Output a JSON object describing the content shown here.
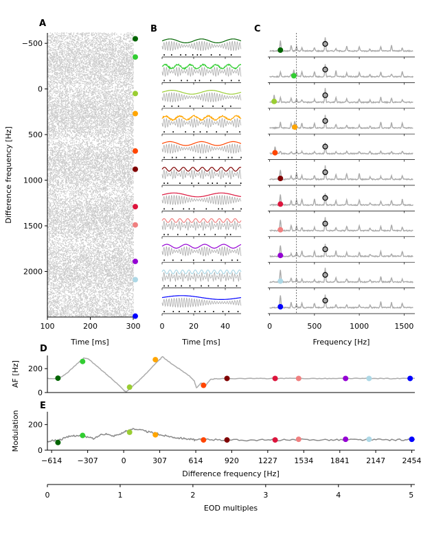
{
  "panel_labels": {
    "a": "A",
    "b": "B",
    "c": "C",
    "d": "D",
    "e": "E"
  },
  "chart_data": [
    {
      "id": "A",
      "type": "scatter",
      "xlabel": "Time [ms]",
      "ylabel": "Difference frequency [Hz]",
      "xlim": [
        100,
        300
      ],
      "ylim": [
        2500,
        -614
      ],
      "x_ticks": [
        100,
        200,
        300
      ],
      "y_ticks": [
        -500,
        0,
        500,
        1000,
        1500,
        2000
      ],
      "y_tick_labels": [
        "−500",
        "0",
        "500",
        "1000",
        "1500",
        "2000"
      ],
      "description_of_marks": "gray spike raster, one row per difference frequency",
      "marker_points": [
        {
          "y": -550,
          "color": "#006400"
        },
        {
          "y": -350,
          "color": "#32cd32"
        },
        {
          "y": 50,
          "color": "#9acd32"
        },
        {
          "y": 270,
          "color": "#ffa500"
        },
        {
          "y": 680,
          "color": "#ff4500"
        },
        {
          "y": 880,
          "color": "#800000"
        },
        {
          "y": 1290,
          "color": "#dc143c"
        },
        {
          "y": 1490,
          "color": "#f08080"
        },
        {
          "y": 1890,
          "color": "#9400d3"
        },
        {
          "y": 2090,
          "color": "#add8e6"
        },
        {
          "y": 2490,
          "color": "#0000ff"
        }
      ]
    },
    {
      "id": "B",
      "type": "line",
      "xlabel": "Time [ms]",
      "xlim": [
        0,
        50
      ],
      "x_ticks": [
        0,
        20,
        40
      ],
      "series_colors": [
        "#006400",
        "#32cd32",
        "#9acd32",
        "#ffa500",
        "#ff4500",
        "#800000",
        "#dc143c",
        "#f08080",
        "#9400d3",
        "#add8e6",
        "#0000ff"
      ],
      "am_periods_ms": [
        20,
        8,
        25,
        9,
        20,
        6,
        30,
        5,
        12,
        4,
        50
      ]
    },
    {
      "id": "C",
      "type": "line",
      "xlabel": "Frequency [Hz]",
      "xlim": [
        -20,
        1620
      ],
      "x_ticks": [
        0,
        500,
        1000,
        1500
      ],
      "reference_line_hz": 300,
      "eod_marker_hz": 620,
      "marker_freqs_hz": [
        120,
        270,
        50,
        280,
        60,
        120,
        120,
        120,
        120,
        120,
        120
      ],
      "series_colors": [
        "#006400",
        "#32cd32",
        "#9acd32",
        "#ffa500",
        "#ff4500",
        "#800000",
        "#dc143c",
        "#f08080",
        "#9400d3",
        "#add8e6",
        "#0000ff"
      ]
    },
    {
      "id": "D",
      "type": "line",
      "ylabel": "AF [Hz]",
      "xlim": [
        -650,
        2480
      ],
      "ylim": [
        0,
        310
      ],
      "y_ticks": [
        0,
        200
      ],
      "curve": [
        [
          -650,
          120
        ],
        [
          -560,
          115
        ],
        [
          -500,
          150
        ],
        [
          -440,
          200
        ],
        [
          -380,
          255
        ],
        [
          -340,
          290
        ],
        [
          -300,
          280
        ],
        [
          -240,
          230
        ],
        [
          -180,
          180
        ],
        [
          -120,
          130
        ],
        [
          -60,
          80
        ],
        [
          0,
          20
        ],
        [
          20,
          5
        ],
        [
          60,
          40
        ],
        [
          120,
          90
        ],
        [
          180,
          150
        ],
        [
          240,
          210
        ],
        [
          300,
          270
        ],
        [
          330,
          300
        ],
        [
          380,
          260
        ],
        [
          440,
          220
        ],
        [
          500,
          180
        ],
        [
          560,
          140
        ],
        [
          600,
          100
        ],
        [
          620,
          40
        ],
        [
          660,
          80
        ],
        [
          700,
          60
        ],
        [
          740,
          110
        ],
        [
          780,
          115
        ],
        [
          840,
          118
        ],
        [
          900,
          117
        ],
        [
          1000,
          118
        ],
        [
          1100,
          117
        ],
        [
          1200,
          118
        ],
        [
          1300,
          117
        ],
        [
          1400,
          118
        ],
        [
          1500,
          117
        ],
        [
          1600,
          118
        ],
        [
          1700,
          117
        ],
        [
          1800,
          117
        ],
        [
          1900,
          118
        ],
        [
          2000,
          118
        ],
        [
          2100,
          117
        ],
        [
          2200,
          118
        ],
        [
          2300,
          117
        ],
        [
          2400,
          118
        ],
        [
          2480,
          118
        ]
      ],
      "markers": [
        {
          "x": -560,
          "y": 120,
          "color": "#006400"
        },
        {
          "x": -350,
          "y": 260,
          "color": "#32cd32"
        },
        {
          "x": 50,
          "y": 45,
          "color": "#9acd32"
        },
        {
          "x": 270,
          "y": 275,
          "color": "#ffa500"
        },
        {
          "x": 680,
          "y": 60,
          "color": "#ff4500"
        },
        {
          "x": 880,
          "y": 118,
          "color": "#800000"
        },
        {
          "x": 1290,
          "y": 118,
          "color": "#dc143c"
        },
        {
          "x": 1490,
          "y": 118,
          "color": "#f08080"
        },
        {
          "x": 1890,
          "y": 118,
          "color": "#9400d3"
        },
        {
          "x": 2090,
          "y": 118,
          "color": "#add8e6"
        },
        {
          "x": 2440,
          "y": 118,
          "color": "#0000ff"
        }
      ]
    },
    {
      "id": "E",
      "type": "line",
      "ylabel": "Modulation",
      "xlabel": "Difference frequency [Hz]",
      "xlim": [
        -650,
        2480
      ],
      "ylim": [
        0,
        300
      ],
      "y_ticks": [
        0,
        200
      ],
      "x_ticks": [
        -614,
        -307,
        0,
        307,
        614,
        920,
        1227,
        1534,
        1841,
        2147,
        2454
      ],
      "x_tick_labels": [
        "−614",
        "−307",
        "0",
        "307",
        "614",
        "920",
        "1227",
        "1534",
        "1841",
        "2147",
        "2454"
      ],
      "curve": [
        [
          -650,
          70
        ],
        [
          -600,
          75
        ],
        [
          -550,
          80
        ],
        [
          -500,
          95
        ],
        [
          -450,
          110
        ],
        [
          -400,
          115
        ],
        [
          -350,
          110
        ],
        [
          -300,
          100
        ],
        [
          -250,
          90
        ],
        [
          -200,
          120
        ],
        [
          -150,
          130
        ],
        [
          -100,
          110
        ],
        [
          -50,
          120
        ],
        [
          0,
          140
        ],
        [
          30,
          150
        ],
        [
          80,
          170
        ],
        [
          130,
          160
        ],
        [
          180,
          150
        ],
        [
          230,
          140
        ],
        [
          280,
          130
        ],
        [
          330,
          115
        ],
        [
          380,
          110
        ],
        [
          430,
          100
        ],
        [
          480,
          95
        ],
        [
          530,
          90
        ],
        [
          580,
          85
        ],
        [
          614,
          80
        ],
        [
          700,
          85
        ],
        [
          800,
          80
        ],
        [
          900,
          80
        ],
        [
          1000,
          78
        ],
        [
          1100,
          80
        ],
        [
          1200,
          78
        ],
        [
          1300,
          80
        ],
        [
          1400,
          78
        ],
        [
          1500,
          82
        ],
        [
          1600,
          80
        ],
        [
          1700,
          82
        ],
        [
          1800,
          80
        ],
        [
          1900,
          82
        ],
        [
          2000,
          82
        ],
        [
          2100,
          80
        ],
        [
          2200,
          82
        ],
        [
          2300,
          80
        ],
        [
          2400,
          82
        ],
        [
          2480,
          82
        ]
      ],
      "markers": [
        {
          "x": -560,
          "y": 60,
          "color": "#006400"
        },
        {
          "x": -350,
          "y": 115,
          "color": "#32cd32"
        },
        {
          "x": 50,
          "y": 140,
          "color": "#9acd32"
        },
        {
          "x": 270,
          "y": 120,
          "color": "#ffa500"
        },
        {
          "x": 680,
          "y": 80,
          "color": "#ff4500"
        },
        {
          "x": 880,
          "y": 80,
          "color": "#800000"
        },
        {
          "x": 1290,
          "y": 80,
          "color": "#dc143c"
        },
        {
          "x": 1490,
          "y": 85,
          "color": "#f08080"
        },
        {
          "x": 1890,
          "y": 85,
          "color": "#9400d3"
        },
        {
          "x": 2090,
          "y": 85,
          "color": "#add8e6"
        },
        {
          "x": 2454,
          "y": 85,
          "color": "#0000ff"
        }
      ]
    },
    {
      "id": "EOD-axis",
      "type": "axis",
      "xlabel": "EOD multiples",
      "xlim": [
        0,
        5.05
      ],
      "x_ticks": [
        0,
        1,
        2,
        3,
        4,
        5
      ]
    }
  ]
}
